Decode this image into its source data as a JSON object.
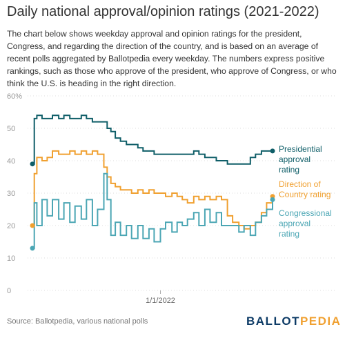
{
  "header": {
    "title": "Daily national approval/opinion ratings (2021-2022)",
    "description": "The chart below shows weekday approval and opinion ratings for the president, Congress, and regarding the direction of the country, and is based on an average of recent polls aggregated by Ballotpedia every weekday. The numbers express positive rankings, such as those who approve of the president, who approve of Congress, or who think the U.S. is heading in the right direction."
  },
  "footer": {
    "source": "Source: Ballotpedia, various national polls",
    "brand_part1": "BALLOT",
    "brand_part2": "PEDIA"
  },
  "colors": {
    "presidential": "#0f5e68",
    "direction": "#f0a030",
    "congressional": "#4ba6b4",
    "grid": "#dddddd",
    "axis_text": "#999999"
  },
  "chart_data": {
    "type": "line",
    "title": "Daily national approval/opinion ratings (2021-2022)",
    "xlabel": "",
    "ylabel": "",
    "ylim": [
      0,
      60
    ],
    "y_ticks": [
      "0",
      "10",
      "20",
      "30",
      "40",
      "50",
      "60%"
    ],
    "y_tick_values": [
      0,
      10,
      20,
      30,
      40,
      50,
      60
    ],
    "x_tick_labels": [
      "1/1/2022"
    ],
    "x_range": [
      "2021-01-20",
      "2022-10-31"
    ],
    "x_tick_dates": [
      "2022-01-01"
    ],
    "grid": true,
    "legend": "direct labels at line ends (right)",
    "series": [
      {
        "name": "Presidential approval rating",
        "label_lines": [
          "Presidential",
          "approval",
          "rating"
        ],
        "color": "#0f5e68",
        "x": [
          "2021-01-20",
          "2021-01-25",
          "2021-02-01",
          "2021-02-15",
          "2021-03-01",
          "2021-03-15",
          "2021-04-01",
          "2021-04-15",
          "2021-05-01",
          "2021-05-15",
          "2021-06-01",
          "2021-06-15",
          "2021-07-01",
          "2021-07-15",
          "2021-08-01",
          "2021-08-10",
          "2021-08-20",
          "2021-09-01",
          "2021-09-15",
          "2021-10-01",
          "2021-10-15",
          "2021-11-01",
          "2021-11-15",
          "2021-12-01",
          "2021-12-15",
          "2022-01-01",
          "2022-01-15",
          "2022-02-01",
          "2022-02-15",
          "2022-03-01",
          "2022-03-15",
          "2022-04-01",
          "2022-04-15",
          "2022-05-01",
          "2022-05-15",
          "2022-06-01",
          "2022-06-15",
          "2022-07-01",
          "2022-07-15",
          "2022-08-01",
          "2022-08-15",
          "2022-09-01",
          "2022-09-15",
          "2022-10-01",
          "2022-10-15",
          "2022-10-31"
        ],
        "values": [
          39,
          53,
          54,
          53,
          53,
          54,
          53,
          54,
          53,
          53,
          54,
          53,
          52,
          52,
          52,
          50,
          49,
          47,
          46,
          45,
          45,
          44,
          43,
          43,
          42,
          42,
          42,
          42,
          42,
          42,
          42,
          43,
          42,
          41,
          41,
          40,
          40,
          39,
          39,
          39,
          39,
          41,
          42,
          43,
          43,
          43
        ]
      },
      {
        "name": "Direction of Country rating",
        "label_lines": [
          "Direction of",
          "Country rating"
        ],
        "color": "#f0a030",
        "x": [
          "2021-01-20",
          "2021-01-25",
          "2021-02-01",
          "2021-02-15",
          "2021-03-01",
          "2021-03-15",
          "2021-04-01",
          "2021-04-15",
          "2021-05-01",
          "2021-05-15",
          "2021-06-01",
          "2021-06-15",
          "2021-07-01",
          "2021-07-15",
          "2021-08-01",
          "2021-08-10",
          "2021-08-20",
          "2021-09-01",
          "2021-09-15",
          "2021-10-01",
          "2021-10-15",
          "2021-11-01",
          "2021-11-15",
          "2021-12-01",
          "2021-12-15",
          "2022-01-01",
          "2022-01-15",
          "2022-02-01",
          "2022-02-15",
          "2022-03-01",
          "2022-03-15",
          "2022-04-01",
          "2022-04-15",
          "2022-05-01",
          "2022-05-15",
          "2022-06-01",
          "2022-06-15",
          "2022-07-01",
          "2022-07-15",
          "2022-08-01",
          "2022-08-15",
          "2022-09-01",
          "2022-09-15",
          "2022-10-01",
          "2022-10-15",
          "2022-10-31"
        ],
        "values": [
          20,
          36,
          41,
          40,
          41,
          43,
          42,
          42,
          43,
          42,
          43,
          42,
          43,
          42,
          38,
          35,
          33,
          32,
          31,
          31,
          30,
          31,
          30,
          31,
          30,
          30,
          29,
          30,
          29,
          28,
          27,
          29,
          28,
          29,
          28,
          29,
          28,
          23,
          21,
          20,
          19,
          20,
          21,
          24,
          27,
          29
        ]
      },
      {
        "name": "Congressional approval rating",
        "label_lines": [
          "Congressional",
          "approval",
          "rating"
        ],
        "color": "#4ba6b4",
        "x": [
          "2021-01-20",
          "2021-01-25",
          "2021-02-01",
          "2021-02-15",
          "2021-03-01",
          "2021-03-15",
          "2021-04-01",
          "2021-04-15",
          "2021-05-01",
          "2021-05-15",
          "2021-06-01",
          "2021-06-15",
          "2021-07-01",
          "2021-07-15",
          "2021-08-01",
          "2021-08-10",
          "2021-08-20",
          "2021-09-01",
          "2021-09-15",
          "2021-10-01",
          "2021-10-15",
          "2021-11-01",
          "2021-11-15",
          "2021-12-01",
          "2021-12-15",
          "2022-01-01",
          "2022-01-15",
          "2022-02-01",
          "2022-02-15",
          "2022-03-01",
          "2022-03-15",
          "2022-04-01",
          "2022-04-15",
          "2022-05-01",
          "2022-05-15",
          "2022-06-01",
          "2022-06-15",
          "2022-07-01",
          "2022-07-15",
          "2022-08-01",
          "2022-08-15",
          "2022-09-01",
          "2022-09-15",
          "2022-10-01",
          "2022-10-15",
          "2022-10-31"
        ],
        "values": [
          13,
          27,
          20,
          28,
          23,
          28,
          22,
          27,
          21,
          26,
          22,
          28,
          20,
          25,
          36,
          28,
          17,
          21,
          17,
          20,
          16,
          20,
          16,
          19,
          15,
          19,
          21,
          18,
          21,
          20,
          22,
          24,
          20,
          25,
          21,
          24,
          20,
          20,
          20,
          18,
          20,
          17,
          21,
          23,
          25,
          28
        ]
      }
    ]
  }
}
